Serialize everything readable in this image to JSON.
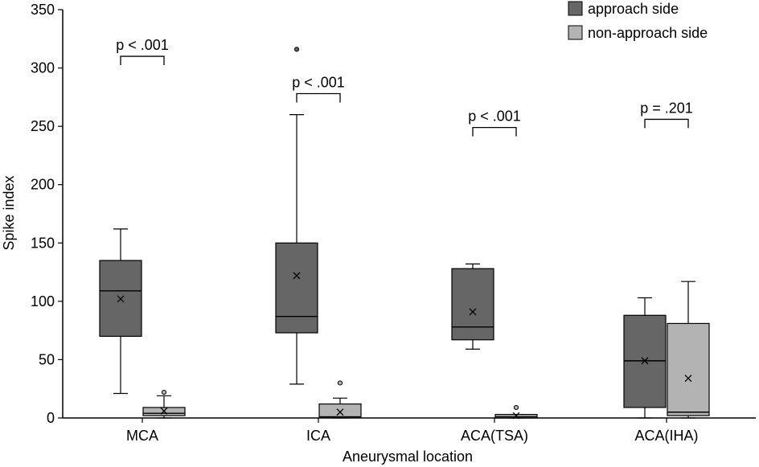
{
  "chart_data": {
    "type": "box",
    "title": "",
    "xlabel": "Aneurysmal location",
    "ylabel": "Spike index",
    "ylim": [
      0,
      350
    ],
    "yticks": [
      0,
      50,
      100,
      150,
      200,
      250,
      300,
      350
    ],
    "categories": [
      "MCA",
      "ICA",
      "ACA(TSA)",
      "ACA(IHA)"
    ],
    "legend": {
      "placement": "top-right"
    },
    "series": [
      {
        "name": "approach side",
        "color": "#666666",
        "boxes": [
          {
            "whisker_low": 21,
            "q1": 70,
            "median": 109,
            "q3": 135,
            "whisker_high": 162,
            "mean": 102,
            "outliers": []
          },
          {
            "whisker_low": 29,
            "q1": 73,
            "median": 87,
            "q3": 150,
            "whisker_high": 260,
            "mean": 122,
            "outliers": [
              316
            ]
          },
          {
            "whisker_low": 59,
            "q1": 67,
            "median": 78,
            "q3": 128,
            "whisker_high": 132,
            "mean": 91,
            "outliers": []
          },
          {
            "whisker_low": 0,
            "q1": 9,
            "median": 49,
            "q3": 88,
            "whisker_high": 103,
            "mean": 49,
            "outliers": []
          }
        ]
      },
      {
        "name": "non-approach side",
        "color": "#b3b3b3",
        "boxes": [
          {
            "whisker_low": 0,
            "q1": 2,
            "median": 4,
            "q3": 9,
            "whisker_high": 19,
            "mean": 6,
            "outliers": [
              22
            ]
          },
          {
            "whisker_low": 0,
            "q1": 1,
            "median": 1,
            "q3": 12,
            "whisker_high": 17,
            "mean": 5,
            "outliers": [
              30
            ]
          },
          {
            "whisker_low": 0,
            "q1": 0,
            "median": 1,
            "q3": 3,
            "whisker_high": 3,
            "mean": 2,
            "outliers": [
              9
            ]
          },
          {
            "whisker_low": 0,
            "q1": 2,
            "median": 5,
            "q3": 81,
            "whisker_high": 117,
            "mean": 34,
            "outliers": []
          }
        ]
      }
    ],
    "annotations": [
      {
        "text": "p < .001",
        "category": "MCA",
        "bracket_value": 310
      },
      {
        "text": "p < .001",
        "category": "ICA",
        "bracket_value": 278
      },
      {
        "text": "p < .001",
        "category": "ACA(TSA)",
        "bracket_value": 249
      },
      {
        "text": "p = .201",
        "category": "ACA(IHA)",
        "bracket_value": 256
      }
    ]
  }
}
